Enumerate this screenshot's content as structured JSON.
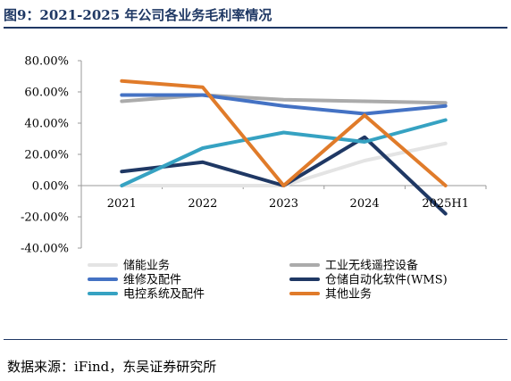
{
  "header": {
    "title": "图9：2021-2025 年公司各业务毛利率情况"
  },
  "footer": {
    "source": "数据来源：iFind，东吴证券研究所"
  },
  "chart_data": {
    "type": "line",
    "categories": [
      "2021",
      "2022",
      "2023",
      "2024",
      "2025H1"
    ],
    "y_ticks": [
      "80.00%",
      "60.00%",
      "40.00%",
      "20.00%",
      "0.00%",
      "-20.00%",
      "-40.00%"
    ],
    "ylim": [
      -40,
      80
    ],
    "grid": false,
    "legend_position": "bottom",
    "series": [
      {
        "name": "储能业务",
        "color": "#e4e4e4",
        "values": [
          0,
          0,
          0,
          16,
          27
        ]
      },
      {
        "name": "工业无线遥控设备",
        "color": "#ababab",
        "values": [
          54,
          58,
          55,
          54,
          53
        ]
      },
      {
        "name": "维修及配件",
        "color": "#4472c4",
        "values": [
          58,
          58,
          51,
          46,
          51
        ]
      },
      {
        "name": "仓储自动化软件(WMS)",
        "color": "#1f3864",
        "values": [
          9,
          15,
          0,
          31,
          -18
        ]
      },
      {
        "name": "电控系统及配件",
        "color": "#36a2c2",
        "values": [
          0,
          24,
          34,
          28,
          42
        ]
      },
      {
        "name": "其他业务",
        "color": "#e07b2a",
        "values": [
          67,
          63,
          0,
          45,
          0
        ]
      }
    ]
  }
}
